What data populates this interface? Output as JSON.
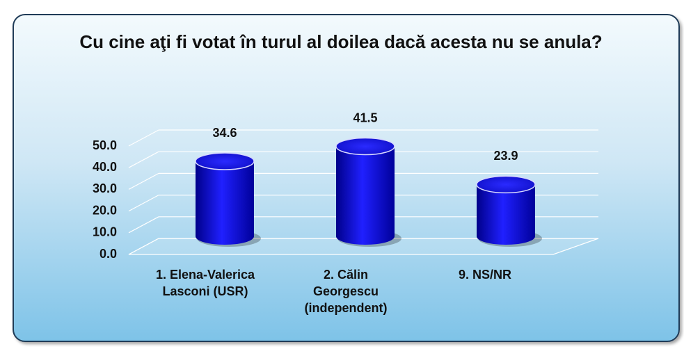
{
  "chart_data": {
    "type": "cylinder",
    "title": "Cu cine aţi fi votat în turul al doilea dacă acesta nu se anula?",
    "categories": [
      "1. Elena-Valerica Lasconi (USR)",
      "2. Călin Georgescu (independent)",
      "9. NS/NR"
    ],
    "values": [
      34.6,
      41.5,
      23.9
    ],
    "color": "#0a0aee",
    "ylim": [
      0,
      50
    ],
    "yticks": [
      {
        "value": 0,
        "label": "0.0"
      },
      {
        "value": 10,
        "label": "10.0"
      },
      {
        "value": 20,
        "label": "20.0"
      },
      {
        "value": 30,
        "label": "30.0"
      },
      {
        "value": 40,
        "label": "40.0"
      },
      {
        "value": 50,
        "label": "50.0"
      }
    ],
    "grid": true
  }
}
